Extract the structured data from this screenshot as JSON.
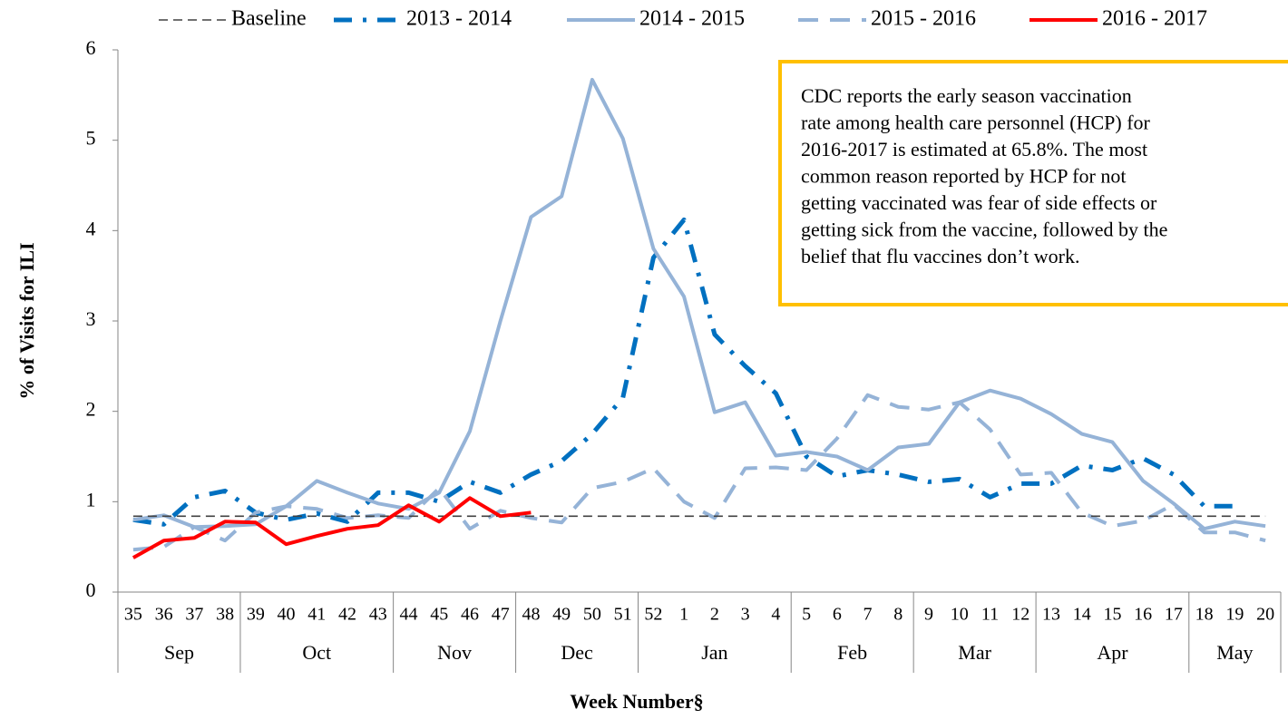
{
  "chart_data": {
    "type": "line",
    "y_label": "% of Visits for ILI",
    "x_label": "Week Number§",
    "categories": [
      "35",
      "36",
      "37",
      "38",
      "39",
      "40",
      "41",
      "42",
      "43",
      "44",
      "45",
      "46",
      "47",
      "48",
      "49",
      "50",
      "51",
      "52",
      "1",
      "2",
      "3",
      "4",
      "5",
      "6",
      "7",
      "8",
      "9",
      "10",
      "11",
      "12",
      "13",
      "14",
      "15",
      "16",
      "17",
      "18",
      "19",
      "20"
    ],
    "months": [
      "Sep",
      "Sep",
      "Sep",
      "Sep",
      "Oct",
      "Oct",
      "Oct",
      "Oct",
      "Oct",
      "Nov",
      "Nov",
      "Nov",
      "Nov",
      "Dec",
      "Dec",
      "Dec",
      "Dec",
      "Jan",
      "Jan",
      "Jan",
      "Jan",
      "Jan",
      "Feb",
      "Feb",
      "Feb",
      "Feb",
      "Mar",
      "Mar",
      "Mar",
      "Mar",
      "Apr",
      "Apr",
      "Apr",
      "Apr",
      "Apr",
      "May",
      "May",
      "May"
    ],
    "ylim": [
      0,
      6
    ],
    "yticks": [
      0,
      1,
      2,
      3,
      4,
      5,
      6
    ],
    "series": [
      {
        "name": "Baseline",
        "color": "#404040",
        "style": "dashed-thin",
        "values": [
          0.84,
          0.84,
          0.84,
          0.84,
          0.84,
          0.84,
          0.84,
          0.84,
          0.84,
          0.84,
          0.84,
          0.84,
          0.84,
          0.84,
          0.84,
          0.84,
          0.84,
          0.84,
          0.84,
          0.84,
          0.84,
          0.84,
          0.84,
          0.84,
          0.84,
          0.84,
          0.84,
          0.84,
          0.84,
          0.84,
          0.84,
          0.84,
          0.84,
          0.84,
          0.84,
          0.84,
          0.84,
          0.84
        ]
      },
      {
        "name": "2013 - 2014",
        "color": "#0070c0",
        "style": "dash-dot",
        "values": [
          0.8,
          0.75,
          1.05,
          1.12,
          0.88,
          0.8,
          0.87,
          0.78,
          1.1,
          1.1,
          1.0,
          1.22,
          1.1,
          1.3,
          1.45,
          1.75,
          2.15,
          3.7,
          4.12,
          2.85,
          2.5,
          2.2,
          1.5,
          1.28,
          1.35,
          1.3,
          1.22,
          1.25,
          1.05,
          1.2,
          1.2,
          1.4,
          1.35,
          1.48,
          1.3,
          0.95,
          0.95,
          null
        ]
      },
      {
        "name": "2014 - 2015",
        "color": "#95b3d7",
        "style": "solid",
        "values": [
          0.8,
          0.85,
          0.72,
          0.73,
          0.75,
          0.95,
          1.23,
          1.1,
          0.98,
          0.92,
          1.1,
          1.78,
          3.0,
          4.15,
          4.38,
          5.67,
          5.02,
          3.8,
          3.27,
          1.99,
          2.1,
          1.51,
          1.55,
          1.5,
          1.35,
          1.6,
          1.64,
          2.1,
          2.23,
          2.14,
          1.97,
          1.75,
          1.66,
          1.23,
          0.98,
          0.7,
          0.78,
          0.73
        ]
      },
      {
        "name": "2015 - 2016",
        "color": "#95b3d7",
        "style": "dashed",
        "values": [
          0.47,
          0.5,
          0.72,
          0.57,
          0.88,
          0.95,
          0.92,
          0.82,
          0.85,
          0.82,
          1.15,
          0.7,
          0.9,
          0.82,
          0.77,
          1.15,
          1.22,
          1.37,
          1.0,
          0.82,
          1.37,
          1.38,
          1.35,
          1.7,
          2.18,
          2.05,
          2.02,
          2.1,
          1.8,
          1.3,
          1.32,
          0.88,
          0.73,
          0.79,
          0.97,
          0.66,
          0.66,
          0.57
        ]
      },
      {
        "name": "2016 - 2017",
        "color": "#ff0000",
        "style": "solid",
        "values": [
          0.38,
          0.57,
          0.6,
          0.78,
          0.77,
          0.53,
          0.62,
          0.7,
          0.74,
          0.96,
          0.78,
          1.04,
          0.84,
          0.88,
          null,
          null,
          null,
          null,
          null,
          null,
          null,
          null,
          null,
          null,
          null,
          null,
          null,
          null,
          null,
          null,
          null,
          null,
          null,
          null,
          null,
          null,
          null,
          null
        ]
      }
    ],
    "annotation": [
      "CDC reports the early season vaccination",
      "rate among health care personnel (HCP) for",
      "2016-2017 is estimated at 65.8%. The most",
      "common reason reported by HCP for not",
      "getting vaccinated was fear of side effects or",
      "getting sick from the vaccine, followed by the",
      "belief that flu vaccines don’t work."
    ]
  }
}
